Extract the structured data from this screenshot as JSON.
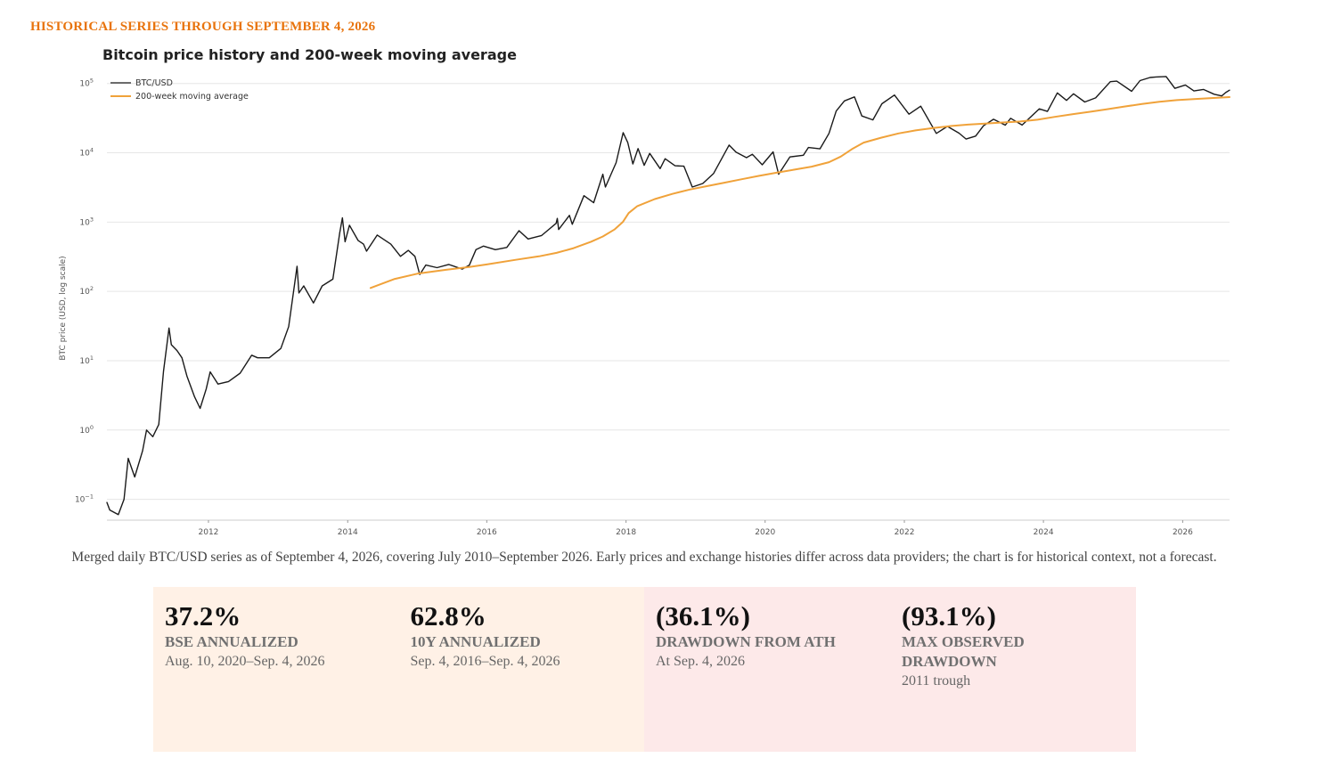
{
  "header": {
    "eyebrow": "HISTORICAL SERIES THROUGH SEPTEMBER 4, 2026",
    "eyebrow_color": "#e8730c"
  },
  "chart_data": {
    "type": "line",
    "title": "Bitcoin price history and 200-week moving average",
    "xlabel": "",
    "ylabel": "BTC price (USD, log scale)",
    "y_scale": "log",
    "xlim": [
      "2010-07-17",
      "2026-09-04"
    ],
    "ylim": [
      0.05,
      150000
    ],
    "x_ticks": [
      "2012",
      "2014",
      "2016",
      "2018",
      "2020",
      "2022",
      "2024",
      "2026"
    ],
    "y_ticks": [
      {
        "base": "10",
        "exp": "−1",
        "value": 0.1
      },
      {
        "base": "10",
        "exp": "0",
        "value": 1
      },
      {
        "base": "10",
        "exp": "1",
        "value": 10
      },
      {
        "base": "10",
        "exp": "2",
        "value": 100
      },
      {
        "base": "10",
        "exp": "3",
        "value": 1000
      },
      {
        "base": "10",
        "exp": "4",
        "value": 10000
      },
      {
        "base": "10",
        "exp": "5",
        "value": 100000
      }
    ],
    "grid": true,
    "legend_position": "top-left",
    "series": [
      {
        "name": "BTC/USD",
        "color": "#1a1a1a",
        "points": [
          [
            "2010-07-17",
            0.09
          ],
          [
            "2010-08-01",
            0.07
          ],
          [
            "2010-09-15",
            0.06
          ],
          [
            "2010-10-15",
            0.1
          ],
          [
            "2010-11-06",
            0.39
          ],
          [
            "2010-12-10",
            0.21
          ],
          [
            "2011-01-20",
            0.5
          ],
          [
            "2011-02-10",
            1.0
          ],
          [
            "2011-03-15",
            0.8
          ],
          [
            "2011-04-15",
            1.2
          ],
          [
            "2011-05-10",
            7.0
          ],
          [
            "2011-06-08",
            29.6
          ],
          [
            "2011-06-20",
            17.0
          ],
          [
            "2011-07-20",
            14.0
          ],
          [
            "2011-08-15",
            11.0
          ],
          [
            "2011-09-10",
            6.0
          ],
          [
            "2011-10-20",
            3.0
          ],
          [
            "2011-11-18",
            2.05
          ],
          [
            "2011-12-20",
            3.9
          ],
          [
            "2012-01-10",
            6.9
          ],
          [
            "2012-02-20",
            4.6
          ],
          [
            "2012-04-15",
            5.0
          ],
          [
            "2012-06-15",
            6.6
          ],
          [
            "2012-08-15",
            12.0
          ],
          [
            "2012-09-15",
            11.0
          ],
          [
            "2012-11-15",
            11.0
          ],
          [
            "2013-01-15",
            15.0
          ],
          [
            "2013-02-25",
            31.0
          ],
          [
            "2013-04-10",
            230.0
          ],
          [
            "2013-04-20",
            95.0
          ],
          [
            "2013-05-15",
            120.0
          ],
          [
            "2013-07-05",
            68.0
          ],
          [
            "2013-08-20",
            120.0
          ],
          [
            "2013-10-15",
            150.0
          ],
          [
            "2013-11-20",
            700.0
          ],
          [
            "2013-12-04",
            1150.0
          ],
          [
            "2013-12-18",
            520.0
          ],
          [
            "2014-01-10",
            900.0
          ],
          [
            "2014-02-25",
            540.0
          ],
          [
            "2014-03-25",
            480.0
          ],
          [
            "2014-04-10",
            380.0
          ],
          [
            "2014-06-05",
            650.0
          ],
          [
            "2014-08-15",
            480.0
          ],
          [
            "2014-10-05",
            320.0
          ],
          [
            "2014-11-15",
            390.0
          ],
          [
            "2014-12-20",
            320.0
          ],
          [
            "2015-01-14",
            175.0
          ],
          [
            "2015-02-15",
            240.0
          ],
          [
            "2015-04-15",
            220.0
          ],
          [
            "2015-06-15",
            245.0
          ],
          [
            "2015-08-25",
            210.0
          ],
          [
            "2015-10-01",
            238.0
          ],
          [
            "2015-11-05",
            400.0
          ],
          [
            "2015-12-15",
            450.0
          ],
          [
            "2016-02-15",
            400.0
          ],
          [
            "2016-04-15",
            430.0
          ],
          [
            "2016-06-18",
            750.0
          ],
          [
            "2016-08-05",
            570.0
          ],
          [
            "2016-10-15",
            640.0
          ],
          [
            "2016-12-30",
            960.0
          ],
          [
            "2017-01-05",
            1130.0
          ],
          [
            "2017-01-12",
            780.0
          ],
          [
            "2017-03-10",
            1250.0
          ],
          [
            "2017-03-25",
            930.0
          ],
          [
            "2017-05-25",
            2400.0
          ],
          [
            "2017-07-15",
            1900.0
          ],
          [
            "2017-09-01",
            4900.0
          ],
          [
            "2017-09-15",
            3200.0
          ],
          [
            "2017-11-10",
            7200.0
          ],
          [
            "2017-12-17",
            19500.0
          ],
          [
            "2018-01-10",
            14000.0
          ],
          [
            "2018-02-06",
            6900.0
          ],
          [
            "2018-03-05",
            11500.0
          ],
          [
            "2018-04-06",
            6600.0
          ],
          [
            "2018-05-05",
            9800.0
          ],
          [
            "2018-06-29",
            5900.0
          ],
          [
            "2018-07-25",
            8200.0
          ],
          [
            "2018-09-15",
            6500.0
          ],
          [
            "2018-11-01",
            6400.0
          ],
          [
            "2018-12-15",
            3200.0
          ],
          [
            "2019-02-08",
            3600.0
          ],
          [
            "2019-04-05",
            5000.0
          ],
          [
            "2019-06-26",
            12900.0
          ],
          [
            "2019-08-01",
            10200.0
          ],
          [
            "2019-09-25",
            8500.0
          ],
          [
            "2019-10-26",
            9500.0
          ],
          [
            "2019-12-17",
            6700.0
          ],
          [
            "2020-02-12",
            10300.0
          ],
          [
            "2020-03-12",
            4900.0
          ],
          [
            "2020-05-10",
            8700.0
          ],
          [
            "2020-07-20",
            9200.0
          ],
          [
            "2020-08-15",
            11900.0
          ],
          [
            "2020-10-15",
            11400.0
          ],
          [
            "2020-12-01",
            19000.0
          ],
          [
            "2021-01-08",
            40000.0
          ],
          [
            "2021-02-20",
            56000.0
          ],
          [
            "2021-04-14",
            64000.0
          ],
          [
            "2021-05-23",
            34000.0
          ],
          [
            "2021-07-20",
            29800.0
          ],
          [
            "2021-09-05",
            51000.0
          ],
          [
            "2021-11-10",
            68000.0
          ],
          [
            "2022-01-25",
            36000.0
          ],
          [
            "2022-03-28",
            47000.0
          ],
          [
            "2022-06-18",
            19000.0
          ],
          [
            "2022-08-15",
            24000.0
          ],
          [
            "2022-10-15",
            19200.0
          ],
          [
            "2022-11-21",
            15800.0
          ],
          [
            "2023-01-10",
            17400.0
          ],
          [
            "2023-02-20",
            24500.0
          ],
          [
            "2023-04-14",
            30400.0
          ],
          [
            "2023-06-15",
            25000.0
          ],
          [
            "2023-07-13",
            31400.0
          ],
          [
            "2023-09-11",
            25100.0
          ],
          [
            "2023-12-10",
            43000.0
          ],
          [
            "2024-01-22",
            39500.0
          ],
          [
            "2024-03-14",
            73000.0
          ],
          [
            "2024-05-01",
            57000.0
          ],
          [
            "2024-06-07",
            71000.0
          ],
          [
            "2024-08-05",
            54000.0
          ],
          [
            "2024-10-01",
            62000.0
          ],
          [
            "2024-12-17",
            106000.0
          ],
          [
            "2025-01-20",
            108000.0
          ],
          [
            "2025-04-08",
            77000.0
          ],
          [
            "2025-05-22",
            110000.0
          ],
          [
            "2025-07-14",
            122000.0
          ],
          [
            "2025-08-14",
            124000.0
          ],
          [
            "2025-10-06",
            126000.0
          ],
          [
            "2025-11-21",
            85000.0
          ],
          [
            "2026-01-15",
            95000.0
          ],
          [
            "2026-03-01",
            78000.0
          ],
          [
            "2026-04-20",
            82000.0
          ],
          [
            "2026-06-15",
            70000.0
          ],
          [
            "2026-07-25",
            66000.0
          ],
          [
            "2026-08-15",
            74000.0
          ],
          [
            "2026-09-04",
            80000.0
          ]
        ]
      },
      {
        "name": "200-week moving average",
        "color": "#f0a23a",
        "points": [
          [
            "2014-05-01",
            112.0
          ],
          [
            "2014-09-01",
            150.0
          ],
          [
            "2015-01-01",
            180.0
          ],
          [
            "2015-06-01",
            205.0
          ],
          [
            "2015-10-01",
            225.0
          ],
          [
            "2016-01-01",
            245.0
          ],
          [
            "2016-06-01",
            285.0
          ],
          [
            "2016-10-01",
            320.0
          ],
          [
            "2017-01-01",
            360.0
          ],
          [
            "2017-04-01",
            420.0
          ],
          [
            "2017-07-01",
            520.0
          ],
          [
            "2017-09-01",
            620.0
          ],
          [
            "2017-11-01",
            780.0
          ],
          [
            "2017-12-15",
            1000.0
          ],
          [
            "2018-01-15",
            1350.0
          ],
          [
            "2018-03-01",
            1700.0
          ],
          [
            "2018-06-01",
            2150.0
          ],
          [
            "2018-09-01",
            2550.0
          ],
          [
            "2018-12-01",
            2950.0
          ],
          [
            "2019-03-01",
            3300.0
          ],
          [
            "2019-06-01",
            3700.0
          ],
          [
            "2019-09-01",
            4150.0
          ],
          [
            "2019-12-01",
            4650.0
          ],
          [
            "2020-03-01",
            5150.0
          ],
          [
            "2020-06-01",
            5700.0
          ],
          [
            "2020-09-01",
            6300.0
          ],
          [
            "2020-12-01",
            7300.0
          ],
          [
            "2021-02-01",
            8800.0
          ],
          [
            "2021-04-01",
            11300.0
          ],
          [
            "2021-06-01",
            14000.0
          ],
          [
            "2021-09-01",
            16500.0
          ],
          [
            "2021-12-01",
            19000.0
          ],
          [
            "2022-03-01",
            21000.0
          ],
          [
            "2022-06-01",
            22800.0
          ],
          [
            "2022-09-01",
            24300.0
          ],
          [
            "2022-12-01",
            25500.0
          ],
          [
            "2023-03-01",
            26400.0
          ],
          [
            "2023-06-01",
            27400.0
          ],
          [
            "2023-09-01",
            28300.0
          ],
          [
            "2023-12-01",
            30000.0
          ],
          [
            "2024-03-01",
            33000.0
          ],
          [
            "2024-06-01",
            36000.0
          ],
          [
            "2024-09-01",
            39000.0
          ],
          [
            "2024-12-01",
            42500.0
          ],
          [
            "2025-03-01",
            46500.0
          ],
          [
            "2025-06-01",
            50500.0
          ],
          [
            "2025-09-01",
            54500.0
          ],
          [
            "2025-12-01",
            57500.0
          ],
          [
            "2026-03-01",
            59500.0
          ],
          [
            "2026-06-01",
            61500.0
          ],
          [
            "2026-09-04",
            63500.0
          ]
        ]
      }
    ]
  },
  "caption": "Merged daily BTC/USD series as of September 4, 2026, covering July 2010–September 2026. Early prices and exchange histories differ across data providers; the chart is for historical context, not a forecast.",
  "stats": {
    "growth_bg": "#fff1e6",
    "risk_bg": "#fde9e9",
    "cards": [
      {
        "value": "37.2%",
        "label": "BSE ANNUALIZED",
        "period": "Aug. 10, 2020–Sep. 4, 2026"
      },
      {
        "value": "62.8%",
        "label": "10Y ANNUALIZED",
        "period": "Sep. 4, 2016–Sep. 4, 2026"
      },
      {
        "value": "(36.1%)",
        "label": "DRAWDOWN FROM ATH",
        "period": "At Sep. 4, 2026"
      },
      {
        "value": "(93.1%)",
        "label": "MAX OBSERVED DRAWDOWN",
        "period": "2011 trough"
      }
    ]
  }
}
